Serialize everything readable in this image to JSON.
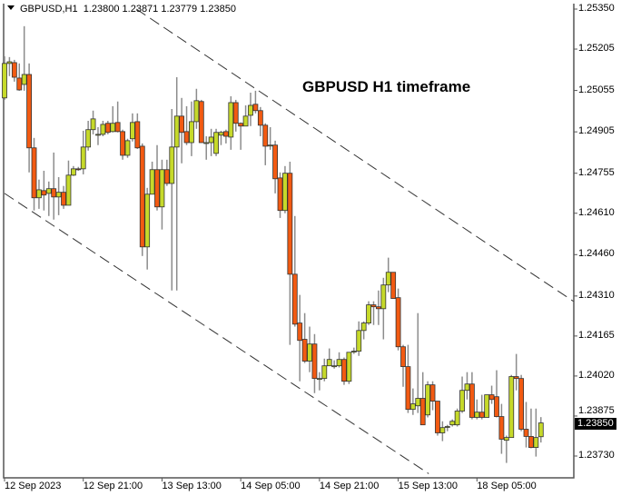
{
  "header": {
    "symbol": "GBPUSD,H1",
    "open": "1.23800",
    "high": "1.23871",
    "low": "1.23779",
    "close": "1.23850"
  },
  "annotation": "GBPUSD H1 timeframe",
  "colors": {
    "bull": "#c6d92a",
    "bear": "#f25a12",
    "outline": "#333333",
    "wick": "#8c8c8c",
    "trendline": "#333333"
  },
  "chart_data": {
    "type": "candlestick",
    "title": "",
    "current_price": "1.23850",
    "ylim": [
      1.237,
      1.2537
    ],
    "y_ticks": [
      "1.25350",
      "1.25205",
      "1.25055",
      "1.24905",
      "1.24755",
      "1.24610",
      "1.24460",
      "1.24310",
      "1.24165",
      "1.24020",
      "1.23875",
      "1.23730"
    ],
    "x_ticks": [
      {
        "bar": 1,
        "label": "12 Sep 2023"
      },
      {
        "bar": 17,
        "label": "12 Sep 21:00"
      },
      {
        "bar": 33,
        "label": "13 Sep 13:00"
      },
      {
        "bar": 49,
        "label": "14 Sep 05:00"
      },
      {
        "bar": 65,
        "label": "14 Sep 21:00"
      },
      {
        "bar": 81,
        "label": "15 Sep 13:00"
      },
      {
        "bar": 97,
        "label": "18 Sep 05:00"
      }
    ],
    "trendlines": [
      {
        "style": "dashed",
        "from_bar": 27.8,
        "from_price": 1.2535,
        "to_bar": 116.6,
        "to_price": 1.24291
      },
      {
        "style": "dashed",
        "from_bar": 1,
        "from_price": 1.24682,
        "to_bar": 87.2,
        "to_price": 1.23666
      }
    ],
    "ohlc": [
      [
        1.25028,
        1.25179,
        1.25021,
        1.25153
      ],
      [
        1.25153,
        1.25176,
        1.25107,
        1.25159
      ],
      [
        1.25156,
        1.25166,
        1.25087,
        1.25103
      ],
      [
        1.251,
        1.25153,
        1.25054,
        1.25057
      ],
      [
        1.25077,
        1.25288,
        1.25054,
        1.25113
      ],
      [
        1.25113,
        1.25153,
        1.24758,
        1.24847
      ],
      [
        1.24847,
        1.24883,
        1.2462,
        1.24666
      ],
      [
        1.24666,
        1.24732,
        1.24626,
        1.24695
      ],
      [
        1.24692,
        1.24764,
        1.2462,
        1.24676
      ],
      [
        1.24682,
        1.24725,
        1.246,
        1.24699
      ],
      [
        1.24699,
        1.2483,
        1.24587,
        1.24669
      ],
      [
        1.24669,
        1.24741,
        1.24603,
        1.24686
      ],
      [
        1.24686,
        1.24709,
        1.24626,
        1.24639
      ],
      [
        1.24639,
        1.24801,
        1.24639,
        1.24748
      ],
      [
        1.24748,
        1.24781,
        1.24745,
        1.24771
      ],
      [
        1.24771,
        1.24778,
        1.24764,
        1.24768
      ],
      [
        1.24771,
        1.24909,
        1.24751,
        1.2485
      ],
      [
        1.2485,
        1.24945,
        1.24837,
        1.24913
      ],
      [
        1.24913,
        1.24982,
        1.24896,
        1.24952
      ],
      [
        1.24896,
        1.24922,
        1.24857,
        1.24896
      ],
      [
        1.24896,
        1.24945,
        1.24889,
        1.24932
      ],
      [
        1.24936,
        1.24945,
        1.24896,
        1.24903
      ],
      [
        1.24906,
        1.24998,
        1.24903,
        1.24936
      ],
      [
        1.24939,
        1.25015,
        1.24903,
        1.24906
      ],
      [
        1.24906,
        1.24913,
        1.24804,
        1.2482
      ],
      [
        1.2482,
        1.2488,
        1.24811,
        1.24873
      ],
      [
        1.2488,
        1.24972,
        1.2487,
        1.24939
      ],
      [
        1.24942,
        1.24972,
        1.24843,
        1.24847
      ],
      [
        1.24853,
        1.24863,
        1.24455,
        1.24488
      ],
      [
        1.24488,
        1.24702,
        1.24406,
        1.24679
      ],
      [
        1.24679,
        1.24797,
        1.24679,
        1.24768
      ],
      [
        1.24768,
        1.24857,
        1.2462,
        1.24633
      ],
      [
        1.24633,
        1.24804,
        1.24551,
        1.24768
      ],
      [
        1.24768,
        1.24804,
        1.24709,
        1.24718
      ],
      [
        1.24718,
        1.24988,
        1.2433,
        1.2485
      ],
      [
        1.2485,
        1.25103,
        1.2433,
        1.24962
      ],
      [
        1.24962,
        1.25028,
        1.24791,
        1.24903
      ],
      [
        1.24906,
        1.24998,
        1.24857,
        1.24866
      ],
      [
        1.24866,
        1.25015,
        1.24817,
        1.24942
      ],
      [
        1.24942,
        1.25061,
        1.24916,
        1.25018
      ],
      [
        1.25015,
        1.25021,
        1.24866,
        1.24866
      ],
      [
        1.24866,
        1.24889,
        1.24804,
        1.24866
      ],
      [
        1.24866,
        1.24916,
        1.24817,
        1.24886
      ],
      [
        1.24827,
        1.24916,
        1.24817,
        1.24903
      ],
      [
        1.24893,
        1.24909,
        1.24857,
        1.24903
      ],
      [
        1.24906,
        1.24913,
        1.24863,
        1.24889
      ],
      [
        1.24886,
        1.25034,
        1.2484,
        1.25011
      ],
      [
        1.25011,
        1.25021,
        1.24906,
        1.24936
      ],
      [
        1.24936,
        1.24939,
        1.2484,
        1.24926
      ],
      [
        1.24926,
        1.25001,
        1.24926,
        1.24962
      ],
      [
        1.24965,
        1.25047,
        1.24926,
        1.25001
      ],
      [
        1.25005,
        1.25054,
        1.24972,
        1.24982
      ],
      [
        1.24982,
        1.24995,
        1.24889,
        1.24929
      ],
      [
        1.24929,
        1.24936,
        1.24784,
        1.24853
      ],
      [
        1.24857,
        1.24922,
        1.2484,
        1.24857
      ],
      [
        1.24857,
        1.24873,
        1.24682,
        1.24735
      ],
      [
        1.24738,
        1.24758,
        1.24593,
        1.2462
      ],
      [
        1.2462,
        1.24781,
        1.2461,
        1.24755
      ],
      [
        1.24755,
        1.24797,
        1.24133,
        1.24389
      ],
      [
        1.24389,
        1.246,
        1.24199,
        1.24208
      ],
      [
        1.24212,
        1.24314,
        1.24001,
        1.24149
      ],
      [
        1.24153,
        1.24248,
        1.24067,
        1.24074
      ],
      [
        1.24074,
        1.24199,
        1.24034,
        1.24136
      ],
      [
        1.24136,
        1.24172,
        1.23958,
        1.24011
      ],
      [
        1.24011,
        1.24034,
        1.23968,
        1.24011
      ],
      [
        1.24011,
        1.24083,
        1.24001,
        1.24057
      ],
      [
        1.24057,
        1.2412,
        1.24057,
        1.2408
      ],
      [
        1.24057,
        1.24077,
        1.24047,
        1.24057
      ],
      [
        1.24057,
        1.24106,
        1.24051,
        1.2408
      ],
      [
        1.2408,
        1.24087,
        1.23988,
        1.24001
      ],
      [
        1.24001,
        1.24106,
        1.23991,
        1.24106
      ],
      [
        1.2411,
        1.24123,
        1.241,
        1.2411
      ],
      [
        1.2411,
        1.24218,
        1.24093,
        1.24185
      ],
      [
        1.24185,
        1.24218,
        1.24153,
        1.24212
      ],
      [
        1.24212,
        1.24291,
        1.24205,
        1.24278
      ],
      [
        1.24278,
        1.24291,
        1.24205,
        1.24271
      ],
      [
        1.24271,
        1.2433,
        1.24205,
        1.24264
      ],
      [
        1.24264,
        1.24376,
        1.24153,
        1.2435
      ],
      [
        1.2435,
        1.24449,
        1.24324,
        1.24396
      ],
      [
        1.24396,
        1.24396,
        1.24301,
        1.24301
      ],
      [
        1.24304,
        1.24337,
        1.24113,
        1.24126
      ],
      [
        1.24126,
        1.24133,
        1.23981,
        1.24054
      ],
      [
        1.24054,
        1.24133,
        1.23886,
        1.23899
      ],
      [
        1.23899,
        1.23975,
        1.23879,
        1.23919
      ],
      [
        1.23912,
        1.24248,
        1.23886,
        1.23939
      ],
      [
        1.23939,
        1.24034,
        1.23843,
        1.23843
      ],
      [
        1.23879,
        1.24001,
        1.2387,
        1.23988
      ],
      [
        1.23988,
        1.24001,
        1.23896,
        1.23929
      ],
      [
        1.23929,
        1.23929,
        1.23804,
        1.23814
      ],
      [
        1.23814,
        1.23856,
        1.23784,
        1.23833
      ],
      [
        1.23837,
        1.23843,
        1.2382,
        1.23837
      ],
      [
        1.23843,
        1.23863,
        1.23837,
        1.23856
      ],
      [
        1.23843,
        1.23902,
        1.23837,
        1.23893
      ],
      [
        1.23893,
        1.24018,
        1.23886,
        1.23968
      ],
      [
        1.23968,
        1.24034,
        1.23935,
        1.23991
      ],
      [
        1.23991,
        1.24034,
        1.23863,
        1.2387
      ],
      [
        1.2387,
        1.23935,
        1.23863,
        1.23889
      ],
      [
        1.23889,
        1.23952,
        1.23863,
        1.2387
      ],
      [
        1.2387,
        1.23952,
        1.2387,
        1.23952
      ],
      [
        1.23952,
        1.23985,
        1.23919,
        1.23935
      ],
      [
        1.23945,
        1.24041,
        1.2387,
        1.23873
      ],
      [
        1.23873,
        1.23919,
        1.23738,
        1.23791
      ],
      [
        1.23787,
        1.23804,
        1.23705,
        1.23797
      ],
      [
        1.23797,
        1.24024,
        1.23797,
        1.24018
      ],
      [
        1.24018,
        1.241,
        1.23968,
        1.24011
      ],
      [
        1.24011,
        1.24024,
        1.2382,
        1.23827
      ],
      [
        1.23827,
        1.23926,
        1.23761,
        1.23801
      ],
      [
        1.23801,
        1.23902,
        1.23758,
        1.23761
      ],
      [
        1.23761,
        1.23902,
        1.23728,
        1.23797
      ],
      [
        1.238,
        1.23871,
        1.23779,
        1.2385
      ]
    ]
  }
}
